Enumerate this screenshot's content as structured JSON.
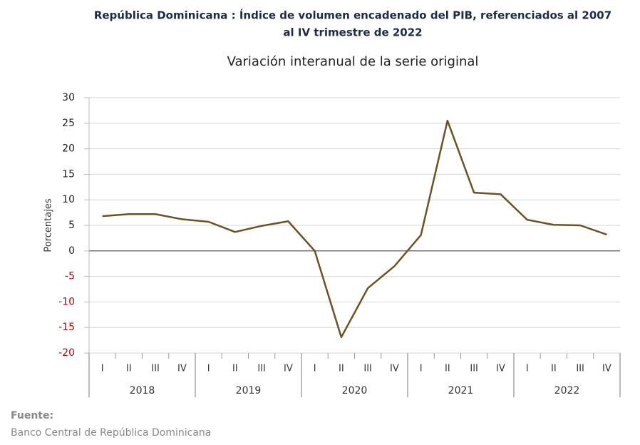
{
  "chart_data": {
    "type": "line",
    "title": [
      "República Dominicana : Índice de volumen encadenado del PIB, referenciados al 2007",
      "al IV trimestre de 2022"
    ],
    "subtitle": "Variación interanual de la serie original",
    "y_label": "Porcentajes",
    "categories": [
      "I",
      "II",
      "III",
      "IV",
      "I",
      "II",
      "III",
      "IV",
      "I",
      "II",
      "III",
      "IV",
      "I",
      "II",
      "III",
      "IV",
      "I",
      "II",
      "III",
      "IV"
    ],
    "category_groups": [
      "2018",
      "2019",
      "2020",
      "2021",
      "2022"
    ],
    "series": [
      {
        "color": "#6b5225",
        "values": [
          6.8,
          7.2,
          7.2,
          6.2,
          5.7,
          3.7,
          4.9,
          5.8,
          0.0,
          -16.9,
          -7.3,
          -3.0,
          3.1,
          25.5,
          11.4,
          11.1,
          6.1,
          5.1,
          5.0,
          3.2
        ]
      }
    ],
    "ylim": [
      -20,
      30
    ],
    "yticks": [
      -20,
      -15,
      -10,
      -5,
      0,
      5,
      10,
      15,
      20,
      25,
      30
    ],
    "negative_tick_color": "#c00000",
    "grid": true,
    "source": {
      "label": "Fuente:",
      "text": "Banco Central de República Dominicana"
    }
  }
}
